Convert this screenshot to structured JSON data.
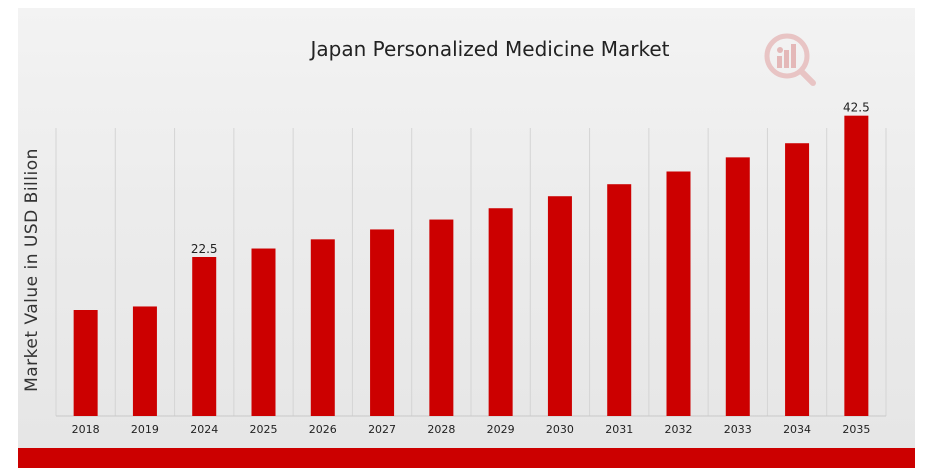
{
  "chart_data": {
    "type": "bar",
    "title": "Japan Personalized Medicine Market",
    "xlabel": "",
    "ylabel": "Market Value in USD Billion",
    "categories": [
      "2018",
      "2019",
      "2024",
      "2025",
      "2026",
      "2027",
      "2028",
      "2029",
      "2030",
      "2031",
      "2032",
      "2033",
      "2034",
      "2035"
    ],
    "values": [
      15.0,
      15.5,
      22.5,
      23.7,
      25.0,
      26.4,
      27.8,
      29.4,
      31.1,
      32.8,
      34.6,
      36.6,
      38.6,
      42.5
    ],
    "data_labels": {
      "2024": "22.5",
      "2035": "42.5"
    },
    "ylim": [
      0,
      45
    ],
    "grid": "vertical",
    "legend": "none",
    "colors": {
      "bar": "#cc0000",
      "grid": "#d4d4d4",
      "accent": "#cc0000"
    }
  },
  "logo": {
    "icon": "market-research-logo-icon"
  }
}
